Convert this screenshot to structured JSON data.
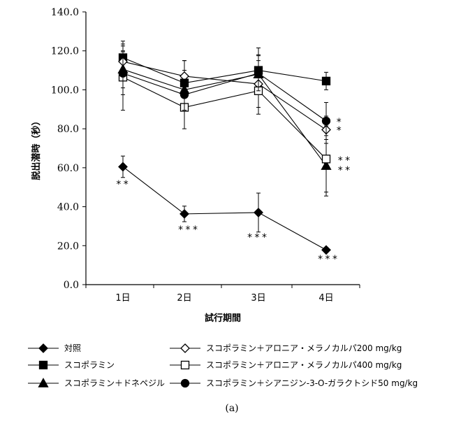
{
  "chart_data": {
    "type": "line",
    "xlabel": "試行期間",
    "ylabel": "脱出潜時（秒）",
    "categories": [
      "1日",
      "2日",
      "3日",
      "4日"
    ],
    "ylim": [
      0,
      140
    ],
    "yticks": [
      "0.0",
      "20.0",
      "40.0",
      "60.0",
      "80.0",
      "100.0",
      "120.0",
      "140.0"
    ],
    "grid": false,
    "legend_position": "bottom",
    "caption": "(a)",
    "series": [
      {
        "name": "対照",
        "marker": "diamond-filled",
        "values": [
          60.5,
          36.3,
          37.0,
          17.8
        ],
        "err": [
          5.5,
          4.0,
          10.0,
          0.8
        ],
        "stars": [
          "**",
          "***",
          "***",
          "***"
        ]
      },
      {
        "name": "スコポラミン",
        "marker": "square-filled",
        "values": [
          116.5,
          103.5,
          110.0,
          104.5
        ],
        "err": [
          8.5,
          11.5,
          11.5,
          4.5
        ],
        "stars": [
          "",
          "",
          "",
          ""
        ]
      },
      {
        "name": "スコポラミン＋ドネペジル",
        "marker": "triangle-filled",
        "values": [
          110.5,
          100.0,
          108.0,
          61.0
        ],
        "err": [
          9.5,
          10.0,
          10.0,
          15.5
        ],
        "stars": [
          "",
          "",
          "",
          "**"
        ]
      },
      {
        "name": "スコポラミン＋アロニア・メラノカルパ200 mg/kg",
        "marker": "diamond-open",
        "values": [
          114.5,
          107.0,
          103.0,
          79.5
        ],
        "err": [
          8.0,
          8.0,
          12.0,
          7.0
        ],
        "stars": [
          "",
          "",
          "",
          "*"
        ]
      },
      {
        "name": "スコポラミン＋アロニア・メラノカルパ400 mg/kg",
        "marker": "square-open",
        "values": [
          106.5,
          91.0,
          99.5,
          64.5
        ],
        "err": [
          17.0,
          11.0,
          12.0,
          17.0
        ],
        "stars": [
          "",
          "",
          "",
          "**"
        ]
      },
      {
        "name": "スコポラミン＋シアニジン-3-O-ガラクトシド50 mg/kg",
        "marker": "circle-filled",
        "values": [
          108.5,
          97.5,
          108.5,
          84.0
        ],
        "err": [
          11.0,
          8.0,
          9.0,
          9.5
        ],
        "stars": [
          "",
          "",
          "",
          "*"
        ]
      }
    ]
  }
}
